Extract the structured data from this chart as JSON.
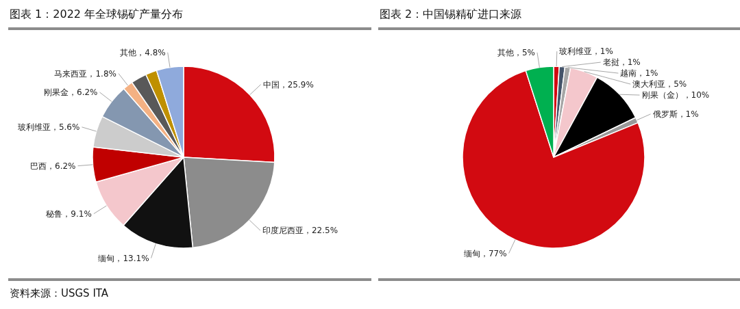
{
  "chart_data": [
    {
      "type": "pie",
      "title": "图表 1：2022 年全球锡矿产量分布",
      "categories": [
        "中国",
        "印度尼西亚",
        "缅甸",
        "秘鲁",
        "巴西",
        "玻利维亚",
        "刚果金",
        "马来西亚",
        null,
        null,
        "其他"
      ],
      "values": [
        25.9,
        22.5,
        13.1,
        9.1,
        6.2,
        5.6,
        6.2,
        1.8,
        2.8,
        2.0,
        4.8
      ],
      "colors": [
        "#d20a11",
        "#8c8c8c",
        "#111111",
        "#f4c7cc",
        "#c00000",
        "#cccccc",
        "#8497b0",
        "#f4b183",
        "#595959",
        "#bf9000",
        "#8faadc"
      ],
      "value_labels": [
        "，25.9%",
        "，22.5%",
        "，13.1%",
        "，9.1%",
        "，6.2%",
        "，5.6%",
        "，6.2%",
        "，1.8%",
        null,
        null,
        "，4.8%"
      ],
      "annotations": [
        "资料来源：USGS ITA"
      ]
    },
    {
      "type": "pie",
      "title": "图表 2：中国锡精矿进口来源",
      "categories": [
        "玻利维亚",
        "老挝",
        "越南",
        "澳大利亚",
        "刚果（金）",
        "俄罗斯",
        "缅甸",
        "其他"
      ],
      "values": [
        1,
        1,
        1,
        5,
        10,
        1,
        77,
        5
      ],
      "colors": [
        "#d20a11",
        "#44546a",
        "#a6a6a6",
        "#f4c7cc",
        "#000000",
        "#999999",
        "#d20a11",
        "#00b050"
      ],
      "value_labels": [
        "，1%",
        "，1%",
        "，1%",
        "，5%",
        "，10%",
        "，1%",
        "，77%",
        "，5%"
      ]
    }
  ]
}
